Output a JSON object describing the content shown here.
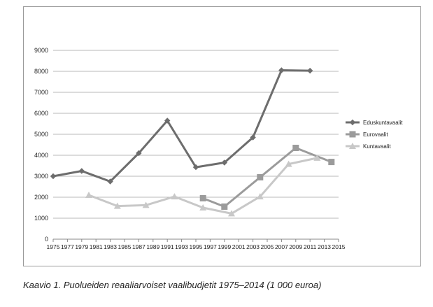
{
  "caption": "Kaavio 1. Puolueiden reaaliarvoiset vaalibudjetit 1975–2014 (1 000 euroa)",
  "chart_data": {
    "type": "line",
    "title": "",
    "xlabel": "",
    "ylabel": "",
    "ylim": [
      0,
      9000
    ],
    "yticks": [
      0,
      1000,
      2000,
      3000,
      4000,
      5000,
      6000,
      7000,
      8000,
      9000
    ],
    "xticks": [
      "1975",
      "1977",
      "1979",
      "1981",
      "1983",
      "1985",
      "1987",
      "1989",
      "1991",
      "1993",
      "1995",
      "1997",
      "1999",
      "2001",
      "2003",
      "2005",
      "2007",
      "2009",
      "2011",
      "2013",
      "2015"
    ],
    "xlim": [
      1975,
      2015
    ],
    "grid": "horizontal",
    "legend_position": "right",
    "series": [
      {
        "name": "Eduskuntavaalit",
        "color": "#6d6d6d",
        "marker": "diamond",
        "points": [
          [
            1975,
            3000
          ],
          [
            1979,
            3250
          ],
          [
            1983,
            2750
          ],
          [
            1987,
            4100
          ],
          [
            1991,
            5650
          ],
          [
            1995,
            3430
          ],
          [
            1999,
            3650
          ],
          [
            2003,
            4850
          ],
          [
            2007,
            8050
          ],
          [
            2011,
            8030
          ]
        ]
      },
      {
        "name": "Eurovaalit",
        "color": "#9b9b9b",
        "marker": "square",
        "points": [
          [
            1996,
            1950
          ],
          [
            1999,
            1550
          ],
          [
            2004,
            2950
          ],
          [
            2009,
            4350
          ],
          [
            2014,
            3680
          ]
        ]
      },
      {
        "name": "Kuntavaalit",
        "color": "#c8c8c8",
        "marker": "triangle",
        "points": [
          [
            1980,
            2100
          ],
          [
            1984,
            1580
          ],
          [
            1988,
            1620
          ],
          [
            1992,
            2030
          ],
          [
            1996,
            1500
          ],
          [
            2000,
            1220
          ],
          [
            2004,
            2030
          ],
          [
            2008,
            3580
          ],
          [
            2012,
            3870
          ]
        ]
      }
    ]
  }
}
